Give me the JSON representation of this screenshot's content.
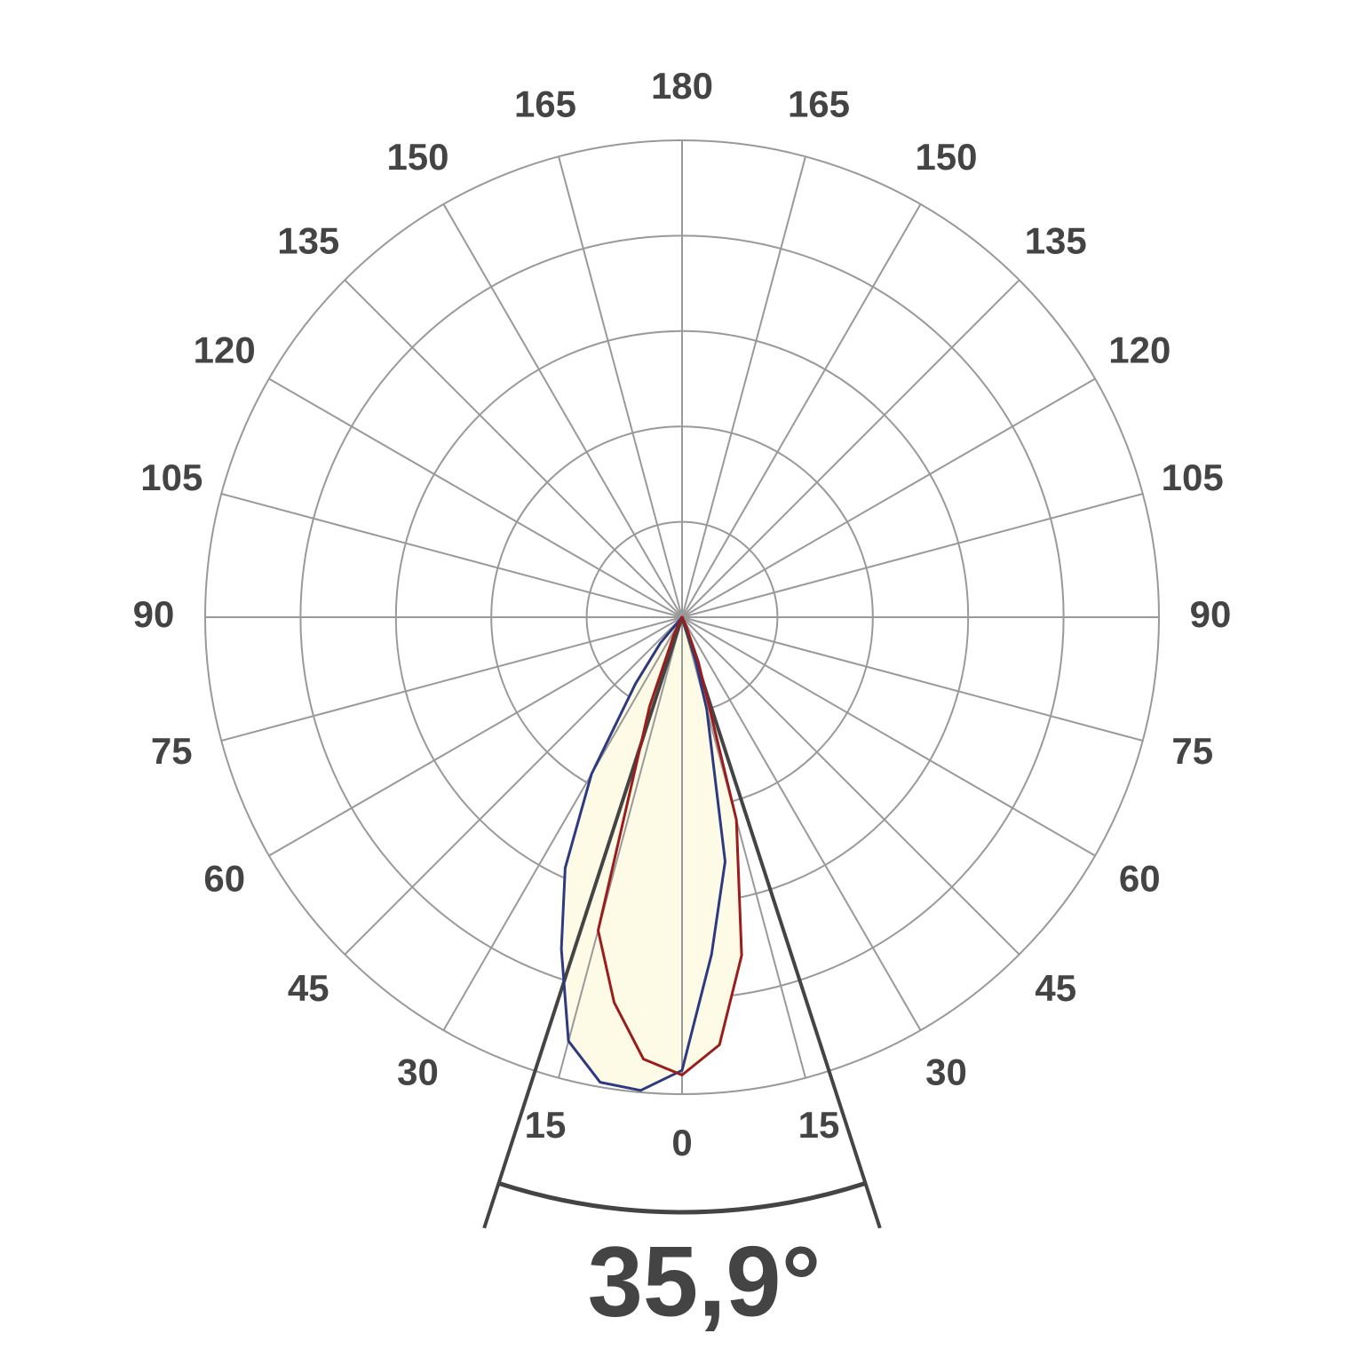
{
  "chart_data": {
    "type": "polar",
    "angle_ticks": [
      0,
      15,
      30,
      45,
      60,
      75,
      90,
      105,
      120,
      135,
      150,
      165,
      180
    ],
    "rlim": [
      0,
      5
    ],
    "rticks": [
      1,
      2,
      3,
      4,
      5
    ],
    "grid": true,
    "x": [
      -45,
      -40,
      -35,
      -30,
      -25,
      -20,
      -15,
      -10,
      -5,
      0,
      5,
      10,
      15,
      20,
      25,
      30
    ],
    "fill_color": "#fdfbe6",
    "series": [
      {
        "color": "#2e3a80",
        "values": [
          0,
          0.35,
          0.85,
          1.9,
          2.9,
          3.7,
          4.6,
          4.95,
          4.98,
          4.75,
          3.55,
          2.6,
          1.0,
          0.3,
          0.05,
          0
        ]
      },
      {
        "color": "#9b1c1c",
        "values": [
          0,
          0,
          0,
          0,
          0.2,
          1.0,
          3.4,
          4.1,
          4.65,
          4.8,
          4.5,
          3.6,
          2.2,
          0.5,
          0.1,
          0
        ]
      }
    ],
    "beam_angle": {
      "value": 35.9,
      "label": "35,9°"
    }
  }
}
